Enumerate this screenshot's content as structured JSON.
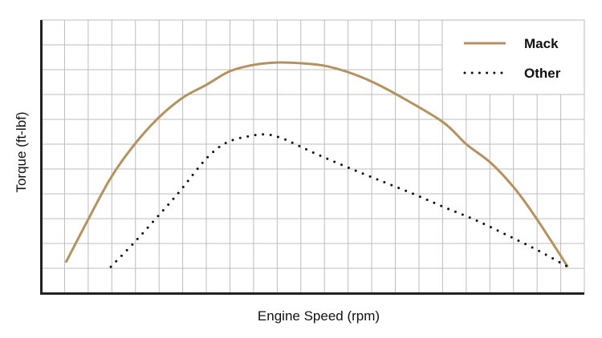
{
  "chart_data": {
    "type": "line",
    "title": "",
    "xlabel": "Engine Speed (rpm)",
    "ylabel": "Torque (ft-lbf)",
    "xlim": [
      0,
      23
    ],
    "ylim": [
      0,
      11
    ],
    "grid": true,
    "tick_labels_shown": false,
    "legend_position": "top-right",
    "series": [
      {
        "name": "Mack",
        "style": "solid",
        "color": "#b3925f",
        "points": [
          [
            1.05,
            1.23
          ],
          [
            2.0,
            2.97
          ],
          [
            2.96,
            4.65
          ],
          [
            3.92,
            5.94
          ],
          [
            4.94,
            7.03
          ],
          [
            6.0,
            7.87
          ],
          [
            7.0,
            8.39
          ],
          [
            8.0,
            8.94
          ],
          [
            9.04,
            9.2
          ],
          [
            10.06,
            9.29
          ],
          [
            11.0,
            9.26
          ],
          [
            12.0,
            9.16
          ],
          [
            13.0,
            8.9
          ],
          [
            14.0,
            8.52
          ],
          [
            15.0,
            8.03
          ],
          [
            17.0,
            6.9
          ],
          [
            18.0,
            6.0
          ],
          [
            19.06,
            5.23
          ],
          [
            20.1,
            4.16
          ],
          [
            21.0,
            2.97
          ],
          [
            22.3,
            1.06
          ]
        ]
      },
      {
        "name": "Other",
        "style": "dotted",
        "color": "#111111",
        "points": [
          [
            2.96,
            1.06
          ],
          [
            3.94,
            2.03
          ],
          [
            4.89,
            3.03
          ],
          [
            5.84,
            4.06
          ],
          [
            7.0,
            5.42
          ],
          [
            7.85,
            6.06
          ],
          [
            8.8,
            6.32
          ],
          [
            9.55,
            6.39
          ],
          [
            10.23,
            6.23
          ],
          [
            10.9,
            5.94
          ],
          [
            11.86,
            5.52
          ],
          [
            13.15,
            5.0
          ],
          [
            14.5,
            4.48
          ],
          [
            15.83,
            3.97
          ],
          [
            17.1,
            3.45
          ],
          [
            18.4,
            2.94
          ],
          [
            19.7,
            2.35
          ],
          [
            21.0,
            1.74
          ],
          [
            22.3,
            1.06
          ]
        ]
      }
    ]
  }
}
